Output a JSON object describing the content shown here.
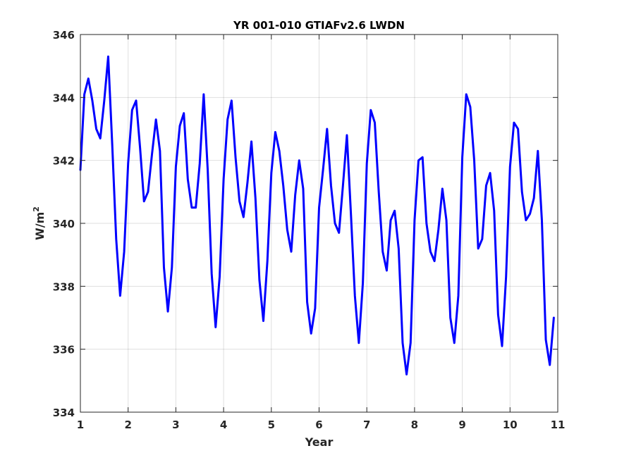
{
  "chart_data": {
    "type": "line",
    "title": "YR 001-010 GTIAFv2.6 LWDN",
    "xlabel": "Year",
    "ylabel_base": "W/m",
    "ylabel_exponent": "2",
    "xlim": [
      1,
      11
    ],
    "ylim": [
      334,
      346
    ],
    "xticks": [
      1,
      2,
      3,
      4,
      5,
      6,
      7,
      8,
      9,
      10,
      11
    ],
    "yticks": [
      334,
      336,
      338,
      340,
      342,
      344,
      346
    ],
    "grid": true,
    "line_color": "#0000ff",
    "series": [
      {
        "x": [
          1.0,
          1.083,
          1.167,
          1.25,
          1.333,
          1.417,
          1.5,
          1.583,
          1.667,
          1.75,
          1.833,
          1.917,
          2.0,
          2.083,
          2.167,
          2.25,
          2.333,
          2.417,
          2.5,
          2.583,
          2.667,
          2.75,
          2.833,
          2.917,
          3.0,
          3.083,
          3.167,
          3.25,
          3.333,
          3.417,
          3.5,
          3.583,
          3.667,
          3.75,
          3.833,
          3.917,
          4.0,
          4.083,
          4.167,
          4.25,
          4.333,
          4.417,
          4.5,
          4.583,
          4.667,
          4.75,
          4.833,
          4.917,
          5.0,
          5.083,
          5.167,
          5.25,
          5.333,
          5.417,
          5.5,
          5.583,
          5.667,
          5.75,
          5.833,
          5.917,
          6.0,
          6.083,
          6.167,
          6.25,
          6.333,
          6.417,
          6.5,
          6.583,
          6.667,
          6.75,
          6.833,
          6.917,
          7.0,
          7.083,
          7.167,
          7.25,
          7.333,
          7.417,
          7.5,
          7.583,
          7.667,
          7.75,
          7.833,
          7.917,
          8.0,
          8.083,
          8.167,
          8.25,
          8.333,
          8.417,
          8.5,
          8.583,
          8.667,
          8.75,
          8.833,
          8.917,
          9.0,
          9.083,
          9.167,
          9.25,
          9.333,
          9.417,
          9.5,
          9.583,
          9.667,
          9.75,
          9.833,
          9.917,
          10.0,
          10.083,
          10.167,
          10.25,
          10.333,
          10.417,
          10.5,
          10.583,
          10.667,
          10.75,
          10.833,
          10.917
        ],
        "y": [
          341.7,
          344.1,
          344.6,
          343.9,
          343.0,
          342.7,
          343.9,
          345.3,
          342.5,
          339.5,
          337.7,
          339.1,
          341.9,
          343.6,
          343.9,
          342.4,
          340.7,
          341.0,
          342.2,
          343.3,
          342.3,
          338.6,
          337.2,
          338.6,
          341.8,
          343.1,
          343.5,
          341.4,
          340.5,
          340.5,
          341.9,
          344.1,
          341.7,
          338.4,
          336.7,
          338.3,
          341.4,
          343.3,
          343.9,
          342.1,
          340.7,
          340.2,
          341.3,
          342.6,
          340.8,
          338.2,
          336.9,
          338.8,
          341.6,
          342.9,
          342.3,
          341.2,
          339.8,
          339.1,
          340.9,
          342.0,
          341.1,
          337.5,
          336.5,
          337.3,
          340.5,
          341.7,
          343.0,
          341.2,
          340.0,
          339.7,
          341.2,
          342.8,
          340.3,
          337.7,
          336.2,
          338.1,
          341.9,
          343.6,
          343.2,
          341.0,
          339.1,
          338.5,
          340.1,
          340.4,
          339.2,
          336.2,
          335.2,
          336.2,
          340.1,
          342.0,
          342.1,
          340.0,
          339.1,
          338.8,
          339.8,
          341.1,
          340.1,
          337.0,
          336.2,
          337.7,
          342.1,
          344.1,
          343.7,
          342.0,
          339.2,
          339.5,
          341.2,
          341.6,
          340.4,
          337.1,
          336.1,
          338.3,
          341.8,
          343.2,
          343.0,
          341.0,
          340.1,
          340.3,
          340.8,
          342.3,
          340.1,
          336.3,
          335.5,
          337.0
        ]
      }
    ]
  }
}
